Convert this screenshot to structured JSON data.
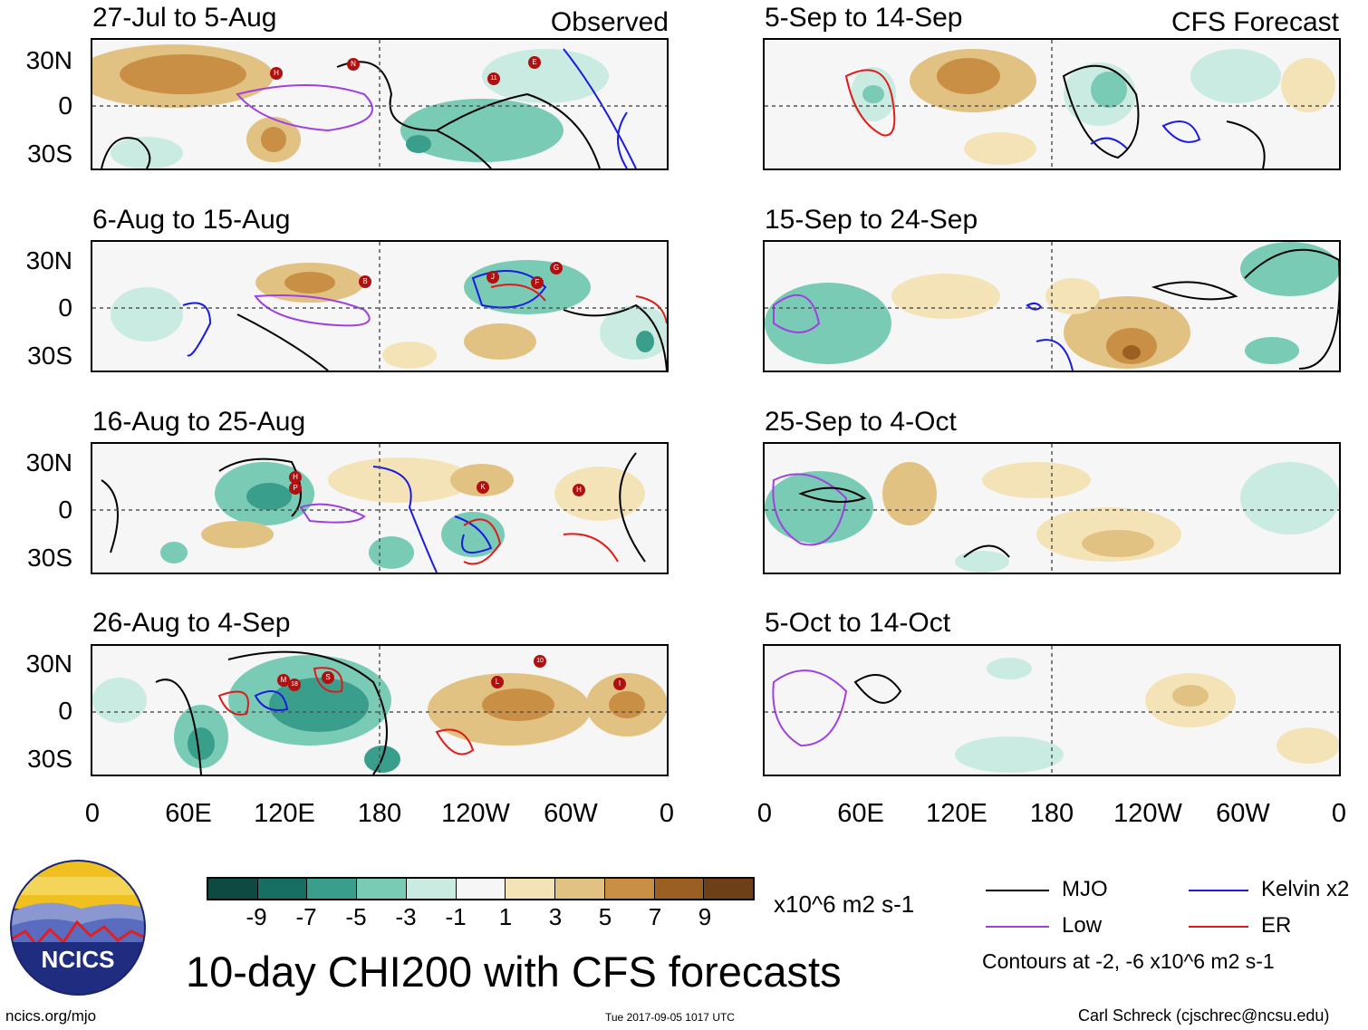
{
  "header": {
    "left_label": "Observed",
    "right_label": "CFS Forecast"
  },
  "panels": {
    "left": [
      {
        "title": "27-Jul to 5-Aug"
      },
      {
        "title": "6-Aug to 15-Aug"
      },
      {
        "title": "16-Aug to 25-Aug"
      },
      {
        "title": "26-Aug to 4-Sep"
      }
    ],
    "right": [
      {
        "title": "5-Sep to 14-Sep"
      },
      {
        "title": "15-Sep to 24-Sep"
      },
      {
        "title": "25-Sep to 4-Oct"
      },
      {
        "title": "5-Oct to 14-Oct"
      }
    ]
  },
  "lat_labels": [
    "30N",
    "0",
    "30S"
  ],
  "lon_labels": [
    "0",
    "60E",
    "120E",
    "180",
    "120W",
    "60W",
    "0"
  ],
  "storm_markers": {
    "p1": [
      "H",
      "N",
      "11",
      "E"
    ],
    "p2": [
      "B",
      "J",
      "F",
      "G"
    ],
    "p3": [
      "H",
      "P",
      "K",
      "H"
    ],
    "p4": [
      "M",
      "18",
      "S",
      "L",
      "10",
      "I"
    ]
  },
  "colorbar": {
    "ticks": [
      "-9",
      "-7",
      "-5",
      "-3",
      "-1",
      "1",
      "3",
      "5",
      "7",
      "9"
    ],
    "colors": [
      "#0e4a41",
      "#176e62",
      "#3a9e8d",
      "#79cbb6",
      "#c9ebe1",
      "#f6f6f6",
      "#f4e3b7",
      "#e2c282",
      "#c98f45",
      "#9b5f22",
      "#6e4017"
    ],
    "units": "x10^6 m2 s-1"
  },
  "legend": {
    "items": [
      {
        "label": "MJO",
        "color": "#000000"
      },
      {
        "label": "Kelvin x2",
        "color": "#1a1ae0"
      },
      {
        "label": "Low",
        "color": "#a040e0"
      },
      {
        "label": "ER",
        "color": "#e01a1a"
      }
    ],
    "contours_note": "Contours at -2, -6 x10^6 m2 s-1"
  },
  "footer": {
    "main_title": "10-day CHI200 with CFS forecasts",
    "logo_text": "NCICS",
    "url": "ncics.org/mjo",
    "timestamp": "Tue 2017-09-05 1017 UTC",
    "author": "Carl Schreck (cjschrec@ncsu.edu)"
  }
}
